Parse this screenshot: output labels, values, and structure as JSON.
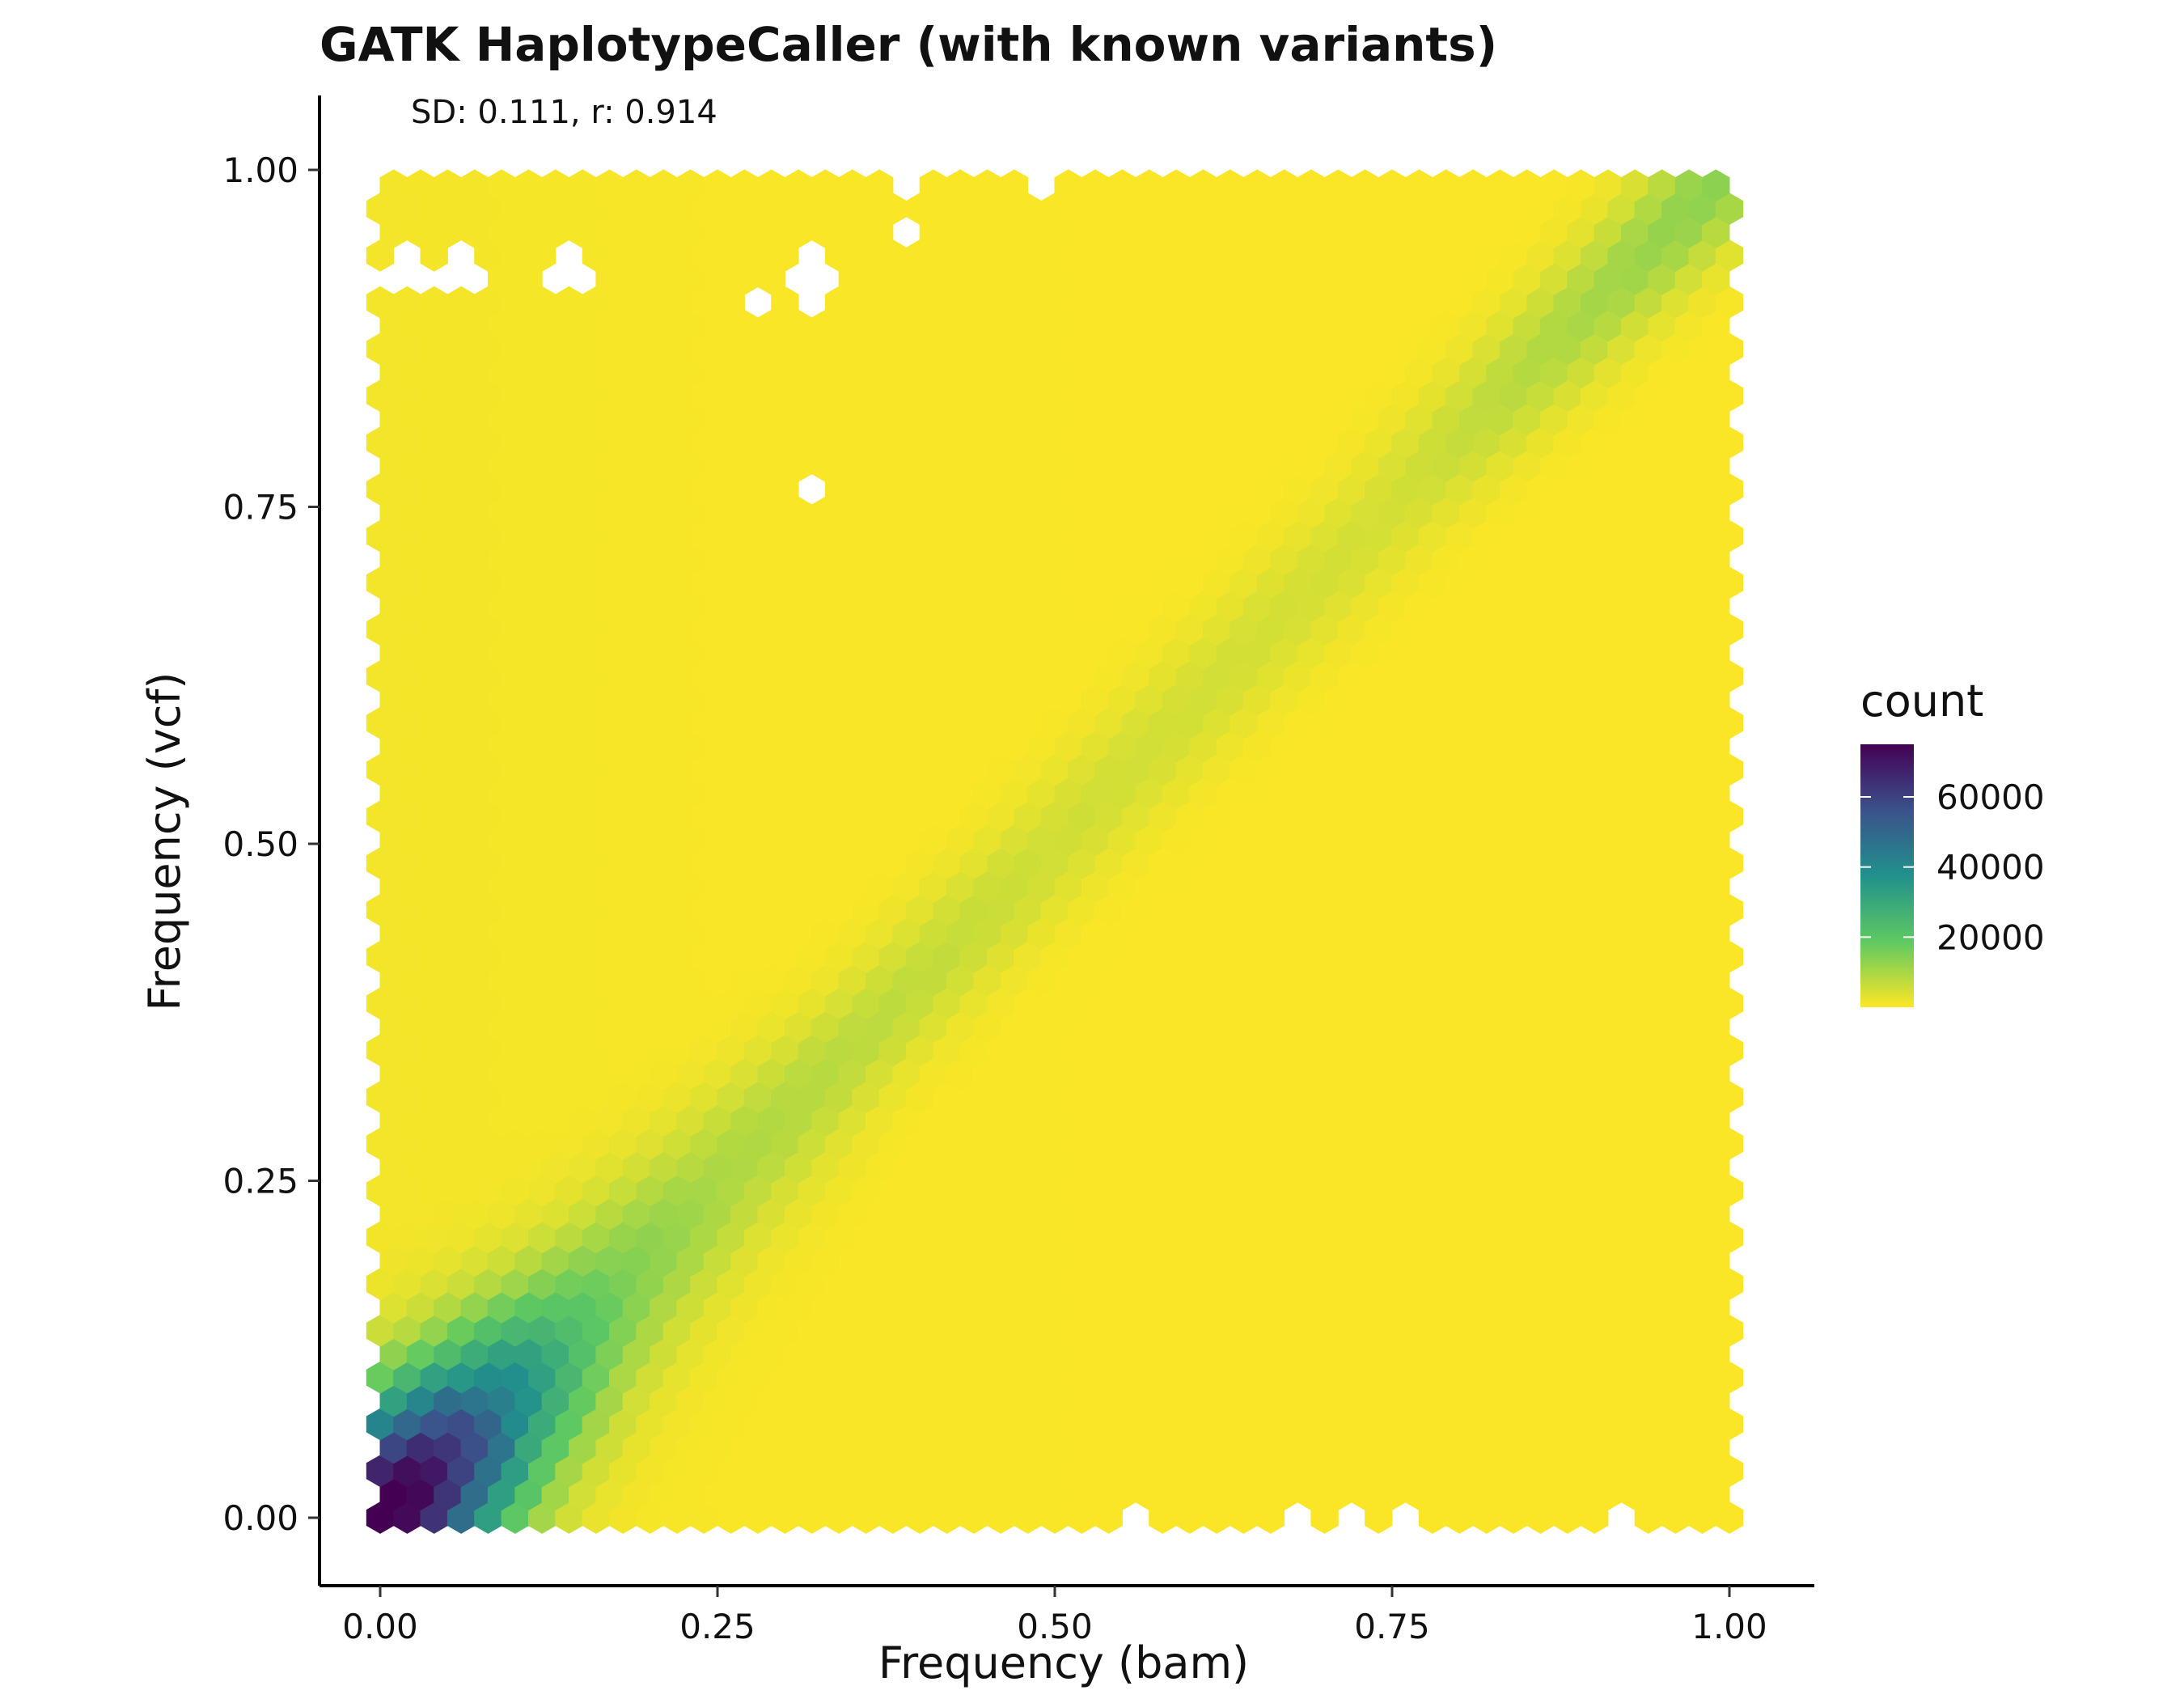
{
  "chart_data": {
    "type": "heatmap",
    "subtype": "hexbin",
    "title": "GATK HaplotypeCaller (with known variants)",
    "subtitle": "SD: 0.111, r: 0.914",
    "xlabel": "Frequency (bam)",
    "ylabel": "Frequency (vcf)",
    "xlim": [
      -0.05,
      1.05
    ],
    "ylim": [
      -0.05,
      1.05
    ],
    "x_ticks": [
      {
        "value": 0.0,
        "label": "0.00"
      },
      {
        "value": 0.25,
        "label": "0.25"
      },
      {
        "value": 0.5,
        "label": "0.50"
      },
      {
        "value": 0.75,
        "label": "0.75"
      },
      {
        "value": 1.0,
        "label": "1.00"
      }
    ],
    "y_ticks": [
      {
        "value": 0.0,
        "label": "0.00"
      },
      {
        "value": 0.25,
        "label": "0.25"
      },
      {
        "value": 0.5,
        "label": "0.50"
      },
      {
        "value": 0.75,
        "label": "0.75"
      },
      {
        "value": 1.0,
        "label": "1.00"
      }
    ],
    "grid": false,
    "legend": {
      "title": "count",
      "position": "right",
      "ticks": [
        {
          "value": 20000,
          "label": "20000"
        },
        {
          "value": 40000,
          "label": "40000"
        },
        {
          "value": 60000,
          "label": "60000"
        }
      ],
      "range": [
        0,
        75000
      ]
    },
    "colormap": "viridis",
    "colors": [
      "#fde725",
      "#5ec962",
      "#21918c",
      "#3b528b",
      "#440154"
    ],
    "hex_bins": 50,
    "approx_cells": [
      {
        "x": 0.02,
        "y": 0.02,
        "count": 75000
      },
      {
        "x": 0.04,
        "y": 0.03,
        "count": 68000
      },
      {
        "x": 0.05,
        "y": 0.05,
        "count": 62000
      },
      {
        "x": 0.07,
        "y": 0.06,
        "count": 55000
      },
      {
        "x": 0.08,
        "y": 0.08,
        "count": 45000
      },
      {
        "x": 0.1,
        "y": 0.1,
        "count": 38000
      },
      {
        "x": 0.12,
        "y": 0.12,
        "count": 30000
      },
      {
        "x": 0.14,
        "y": 0.14,
        "count": 22000
      },
      {
        "x": 0.18,
        "y": 0.18,
        "count": 14000
      },
      {
        "x": 0.25,
        "y": 0.25,
        "count": 9000
      },
      {
        "x": 0.5,
        "y": 0.5,
        "count": 5000
      },
      {
        "x": 0.75,
        "y": 0.75,
        "count": 4500
      },
      {
        "x": 0.98,
        "y": 0.98,
        "count": 13000
      }
    ],
    "empty_cells": [
      {
        "x": 0.02,
        "y": 0.93
      },
      {
        "x": 0.06,
        "y": 0.93
      },
      {
        "x": 0.14,
        "y": 0.93
      },
      {
        "x": 0.32,
        "y": 0.93
      },
      {
        "x": 0.28,
        "y": 0.9
      },
      {
        "x": 0.32,
        "y": 0.9
      },
      {
        "x": 0.39,
        "y": 0.95
      },
      {
        "x": 0.39,
        "y": 0.99
      },
      {
        "x": 0.49,
        "y": 0.99
      },
      {
        "x": 0.32,
        "y": 0.76
      },
      {
        "x": 0.56,
        "y": 0.0
      },
      {
        "x": 0.68,
        "y": 0.0
      },
      {
        "x": 0.72,
        "y": 0.0
      },
      {
        "x": 0.76,
        "y": 0.0
      },
      {
        "x": 0.92,
        "y": 0.0
      }
    ]
  }
}
